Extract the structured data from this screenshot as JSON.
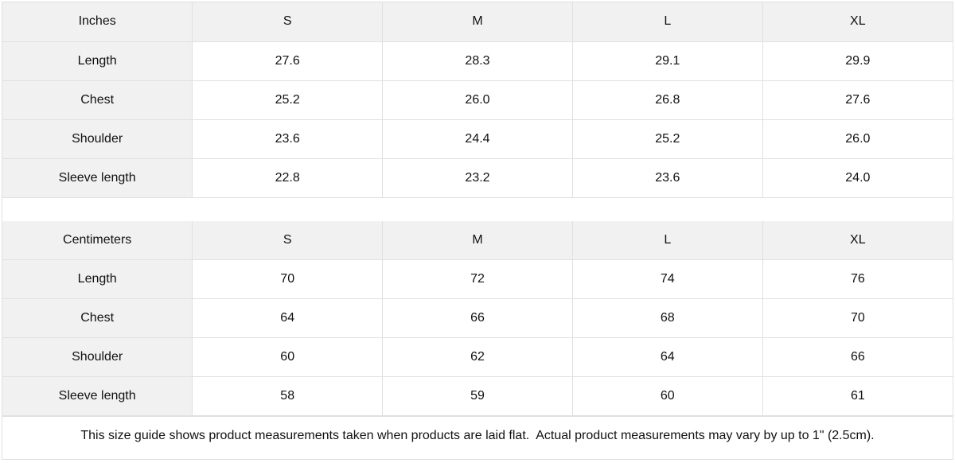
{
  "colors": {
    "header_bg": "#f1f1f1",
    "border": "#e0e0e0",
    "text": "#111111",
    "page_bg": "#ffffff"
  },
  "size_guide": {
    "tables": [
      {
        "unit": "Inches",
        "sizes": [
          "S",
          "M",
          "L",
          "XL"
        ],
        "rows": [
          {
            "label": "Length",
            "values": [
              "27.6",
              "28.3",
              "29.1",
              "29.9"
            ]
          },
          {
            "label": "Chest",
            "values": [
              "25.2",
              "26.0",
              "26.8",
              "27.6"
            ]
          },
          {
            "label": "Shoulder",
            "values": [
              "23.6",
              "24.4",
              "25.2",
              "26.0"
            ]
          },
          {
            "label": "Sleeve length",
            "values": [
              "22.8",
              "23.2",
              "23.6",
              "24.0"
            ]
          }
        ]
      },
      {
        "unit": "Centimeters",
        "sizes": [
          "S",
          "M",
          "L",
          "XL"
        ],
        "rows": [
          {
            "label": "Length",
            "values": [
              "70",
              "72",
              "74",
              "76"
            ]
          },
          {
            "label": "Chest",
            "values": [
              "64",
              "66",
              "68",
              "70"
            ]
          },
          {
            "label": "Shoulder",
            "values": [
              "60",
              "62",
              "64",
              "66"
            ]
          },
          {
            "label": "Sleeve length",
            "values": [
              "58",
              "59",
              "60",
              "61"
            ]
          }
        ]
      }
    ],
    "footer_note": "This size guide shows product measurements taken when products are laid flat.  Actual product measurements may vary by up to 1\" (2.5cm)."
  }
}
